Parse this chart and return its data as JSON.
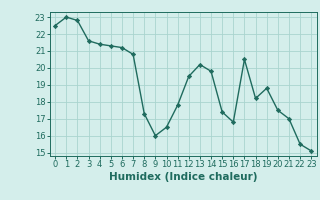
{
  "xlabel": "Humidex (Indice chaleur)",
  "x": [
    0,
    1,
    2,
    3,
    4,
    5,
    6,
    7,
    8,
    9,
    10,
    11,
    12,
    13,
    14,
    15,
    16,
    17,
    18,
    19,
    20,
    21,
    22,
    23
  ],
  "y": [
    22.5,
    23.0,
    22.8,
    21.6,
    21.4,
    21.3,
    21.2,
    20.8,
    17.3,
    16.0,
    16.5,
    17.8,
    19.5,
    20.2,
    19.8,
    17.4,
    16.8,
    20.5,
    18.2,
    18.8,
    17.5,
    17.0,
    15.5,
    15.1
  ],
  "line_color": "#1f6b5e",
  "bg_color": "#d4eeeb",
  "grid_color": "#aad4cf",
  "ylim": [
    14.8,
    23.3
  ],
  "yticks": [
    15,
    16,
    17,
    18,
    19,
    20,
    21,
    22,
    23
  ],
  "xticks": [
    0,
    1,
    2,
    3,
    4,
    5,
    6,
    7,
    8,
    9,
    10,
    11,
    12,
    13,
    14,
    15,
    16,
    17,
    18,
    19,
    20,
    21,
    22,
    23
  ],
  "tick_color": "#1f6b5e",
  "font_color": "#1f6b5e",
  "marker": "D",
  "markersize": 2.2,
  "linewidth": 1.0,
  "xlabel_fontsize": 7.5,
  "tick_fontsize": 6.0
}
